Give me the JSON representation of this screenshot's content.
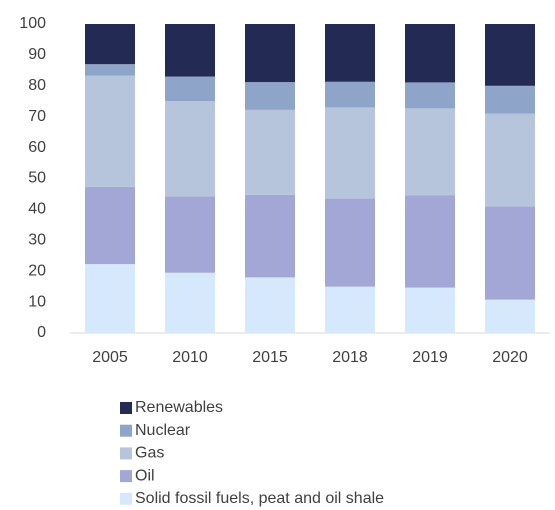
{
  "chart_data": {
    "type": "stacked_bar",
    "categories": [
      "2005",
      "2010",
      "2015",
      "2018",
      "2019",
      "2020"
    ],
    "series": [
      {
        "name": "Solid fossil fuels, peat and oil shale",
        "color": "#d6e8fb",
        "values": [
          22.3,
          19.5,
          18,
          15,
          14.7,
          10.8
        ]
      },
      {
        "name": "Oil",
        "color": "#a3a7d6",
        "values": [
          25,
          24.7,
          26.7,
          28.5,
          29.8,
          30.2
        ]
      },
      {
        "name": "Gas",
        "color": "#b6c4dc",
        "values": [
          36,
          30.8,
          27.5,
          29.5,
          28.2,
          30
        ]
      },
      {
        "name": "Nuclear",
        "color": "#8ea4c8",
        "values": [
          3.7,
          8,
          9,
          8.3,
          8.4,
          9
        ]
      },
      {
        "name": "Renewables",
        "color": "#232b55",
        "values": [
          13,
          17,
          18.8,
          18.7,
          18.9,
          20
        ]
      }
    ],
    "ylim": [
      0,
      100
    ],
    "yticks": [
      0,
      10,
      20,
      30,
      40,
      50,
      60,
      70,
      80,
      90,
      100
    ],
    "grid": false
  }
}
